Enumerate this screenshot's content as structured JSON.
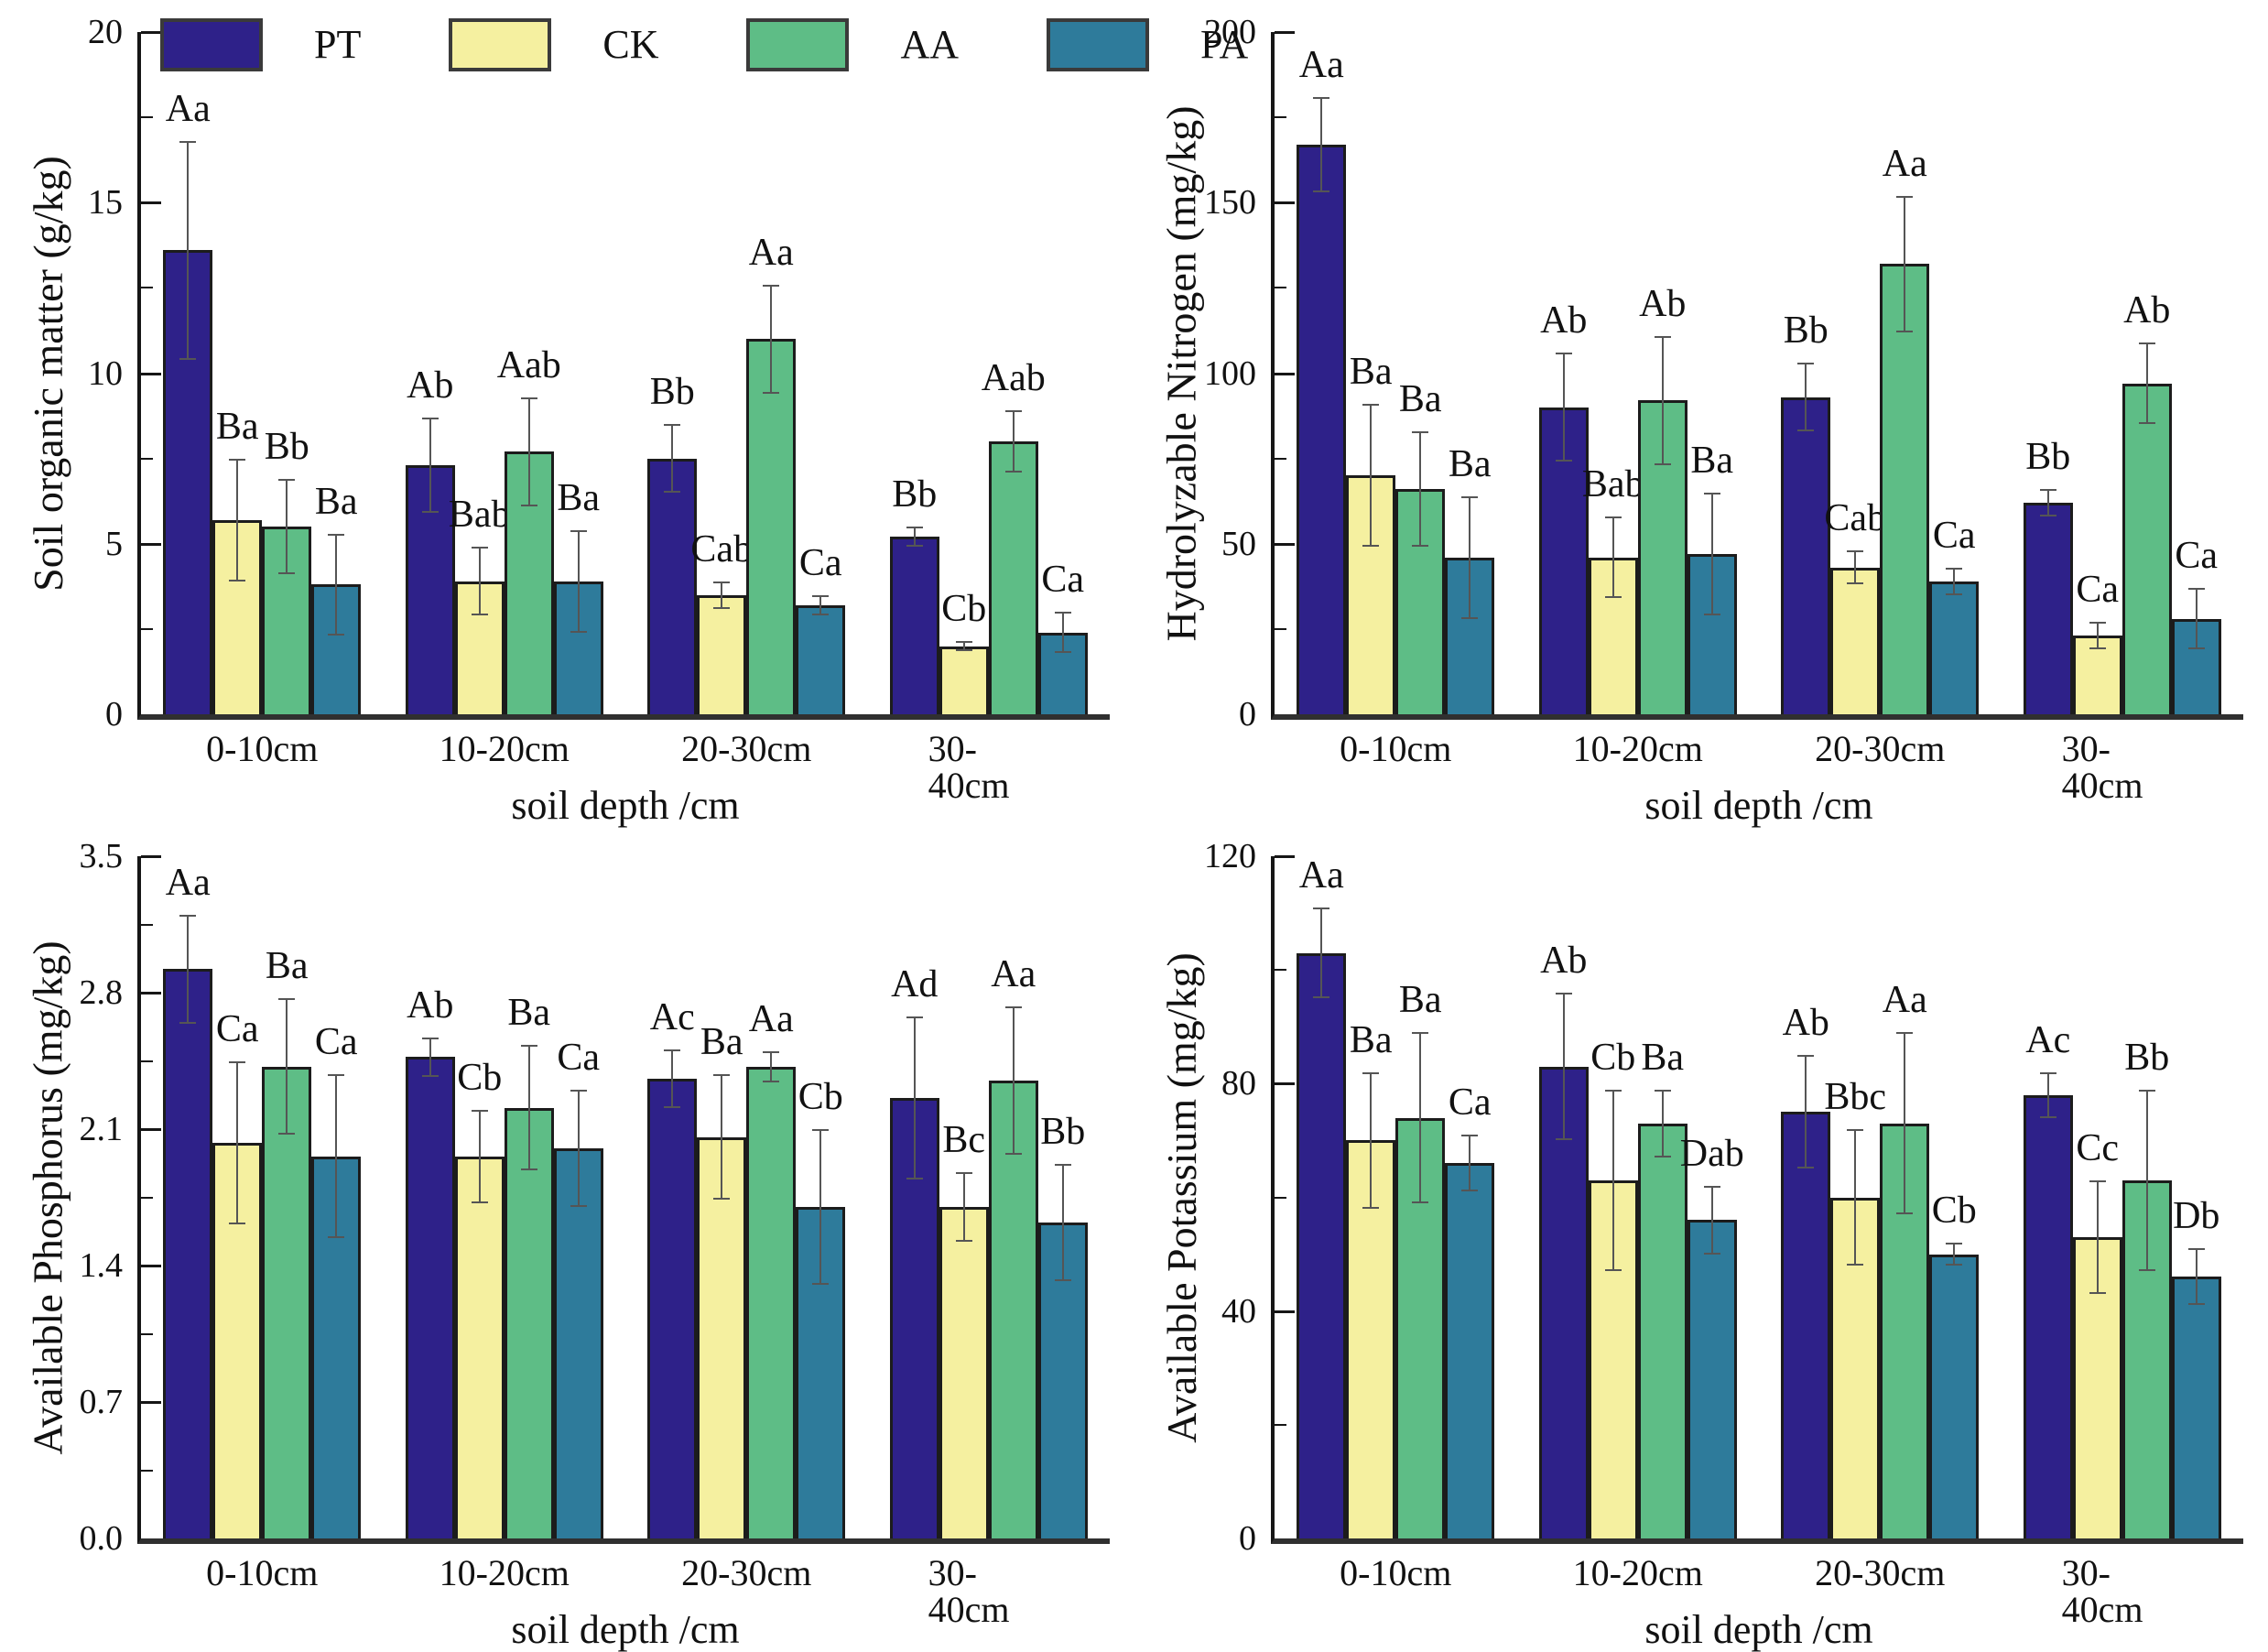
{
  "legend": {
    "items": [
      {
        "label": "PT",
        "color": "#2E2189"
      },
      {
        "label": "CK",
        "color": "#F5F0A0"
      },
      {
        "label": "AA",
        "color": "#5EBD86"
      },
      {
        "label": "PA",
        "color": "#2E7B9B"
      }
    ]
  },
  "colors": {
    "pt": "#2E2189",
    "ck": "#F5F0A0",
    "aa": "#5EBD86",
    "pa": "#2E7B9B",
    "axis": "#161616",
    "error_bar": "#555555"
  },
  "chart_data": [
    {
      "id": "soil-organic-matter",
      "type": "bar",
      "ylabel": "Soil organic matter (g/kg)",
      "xlabel": "soil depth /cm",
      "ylim": [
        0,
        20
      ],
      "ymajor": 5,
      "yminor": 2.5,
      "ytick_labels": [
        "0",
        "5",
        "10",
        "15",
        "20"
      ],
      "categories": [
        "0-10cm",
        "10-20cm",
        "20-30cm",
        "30-40cm"
      ],
      "legend_position": "top-inside",
      "show_legend": true,
      "grid": false,
      "series": [
        {
          "name": "PT",
          "color": "#2E2189",
          "values": [
            13.6,
            7.3,
            7.5,
            5.2
          ],
          "errors": [
            3.2,
            1.4,
            1.0,
            0.3
          ],
          "sig": [
            "Aa",
            "Ab",
            "Bb",
            "Bb"
          ]
        },
        {
          "name": "CK",
          "color": "#F5F0A0",
          "values": [
            5.7,
            3.9,
            3.5,
            2.0
          ],
          "errors": [
            1.8,
            1.0,
            0.4,
            0.15
          ],
          "sig": [
            "Ba",
            "Bab",
            "Cab",
            "Cb"
          ]
        },
        {
          "name": "AA",
          "color": "#5EBD86",
          "values": [
            5.5,
            7.7,
            11.0,
            8.0
          ],
          "errors": [
            1.4,
            1.6,
            1.6,
            0.9
          ],
          "sig": [
            "Bb",
            "Aab",
            "Aa",
            "Aab"
          ]
        },
        {
          "name": "PA",
          "color": "#2E7B9B",
          "values": [
            3.8,
            3.9,
            3.2,
            2.4
          ],
          "errors": [
            1.5,
            1.5,
            0.3,
            0.6
          ],
          "sig": [
            "Ba",
            "Ba",
            "Ca",
            "Ca"
          ]
        }
      ]
    },
    {
      "id": "hydrolyzable-nitrogen",
      "type": "bar",
      "ylabel": "Hydrolyzable Nitrogen (mg/kg)",
      "xlabel": "soil depth /cm",
      "ylim": [
        0,
        200
      ],
      "ymajor": 50,
      "yminor": 25,
      "ytick_labels": [
        "0",
        "50",
        "100",
        "150",
        "200"
      ],
      "categories": [
        "0-10cm",
        "10-20cm",
        "20-30cm",
        "30-40cm"
      ],
      "show_legend": false,
      "grid": false,
      "series": [
        {
          "name": "PT",
          "color": "#2E2189",
          "values": [
            167,
            90,
            93,
            62
          ],
          "errors": [
            14,
            16,
            10,
            4
          ],
          "sig": [
            "Aa",
            "Ab",
            "Bb",
            "Bb"
          ]
        },
        {
          "name": "CK",
          "color": "#F5F0A0",
          "values": [
            70,
            46,
            43,
            23
          ],
          "errors": [
            21,
            12,
            5,
            4
          ],
          "sig": [
            "Ba",
            "Bab",
            "Cab",
            "Ca"
          ]
        },
        {
          "name": "AA",
          "color": "#5EBD86",
          "values": [
            66,
            92,
            132,
            97
          ],
          "errors": [
            17,
            19,
            20,
            12
          ],
          "sig": [
            "Ba",
            "Ab",
            "Aa",
            "Ab"
          ]
        },
        {
          "name": "PA",
          "color": "#2E7B9B",
          "values": [
            46,
            47,
            39,
            28
          ],
          "errors": [
            18,
            18,
            4,
            9
          ],
          "sig": [
            "Ba",
            "Ba",
            "Ca",
            "Ca"
          ]
        }
      ]
    },
    {
      "id": "available-phosphorus",
      "type": "bar",
      "ylabel": "Available Phosphorus (mg/kg)",
      "xlabel": "soil depth /cm",
      "ylim": [
        0,
        3.5
      ],
      "ymajor": 0.7,
      "yminor": 0.35,
      "ytick_labels": [
        "0.0",
        "0.7",
        "1.4",
        "2.1",
        "2.8",
        "3.5"
      ],
      "categories": [
        "0-10cm",
        "10-20cm",
        "20-30cm",
        "30-40cm"
      ],
      "show_legend": false,
      "grid": false,
      "series": [
        {
          "name": "PT",
          "color": "#2E2189",
          "values": [
            2.92,
            2.47,
            2.36,
            2.26
          ],
          "errors": [
            0.28,
            0.1,
            0.15,
            0.42
          ],
          "sig": [
            "Aa",
            "Ab",
            "Ac",
            "Ad"
          ]
        },
        {
          "name": "CK",
          "color": "#F5F0A0",
          "values": [
            2.03,
            1.96,
            2.06,
            1.7
          ],
          "errors": [
            0.42,
            0.24,
            0.32,
            0.18
          ],
          "sig": [
            "Ca",
            "Cb",
            "Ba",
            "Bc"
          ]
        },
        {
          "name": "AA",
          "color": "#5EBD86",
          "values": [
            2.42,
            2.21,
            2.42,
            2.35
          ],
          "errors": [
            0.35,
            0.32,
            0.08,
            0.38
          ],
          "sig": [
            "Ba",
            "Ba",
            "Aa",
            "Aa"
          ]
        },
        {
          "name": "PA",
          "color": "#2E7B9B",
          "values": [
            1.96,
            2.0,
            1.7,
            1.62
          ],
          "errors": [
            0.42,
            0.3,
            0.4,
            0.3
          ],
          "sig": [
            "Ca",
            "Ca",
            "Cb",
            "Bb"
          ]
        }
      ]
    },
    {
      "id": "available-potassium",
      "type": "bar",
      "ylabel": "Available Potassium (mg/kg)",
      "xlabel": "soil depth /cm",
      "ylim": [
        0,
        120
      ],
      "ymajor": 40,
      "yminor": 20,
      "ytick_labels": [
        "0",
        "40",
        "80",
        "120"
      ],
      "categories": [
        "0-10cm",
        "10-20cm",
        "20-30cm",
        "30-40cm"
      ],
      "show_legend": false,
      "grid": false,
      "series": [
        {
          "name": "PT",
          "color": "#2E2189",
          "values": [
            103,
            83,
            75,
            78
          ],
          "errors": [
            8,
            13,
            10,
            4
          ],
          "sig": [
            "Aa",
            "Ab",
            "Ab",
            "Ac"
          ]
        },
        {
          "name": "CK",
          "color": "#F5F0A0",
          "values": [
            70,
            63,
            60,
            53
          ],
          "errors": [
            12,
            16,
            12,
            10
          ],
          "sig": [
            "Ba",
            "Cb",
            "Bbc",
            "Cc"
          ]
        },
        {
          "name": "AA",
          "color": "#5EBD86",
          "values": [
            74,
            73,
            73,
            63
          ],
          "errors": [
            15,
            6,
            16,
            16
          ],
          "sig": [
            "Ba",
            "Ba",
            "Aa",
            "Bb"
          ]
        },
        {
          "name": "PA",
          "color": "#2E7B9B",
          "values": [
            66,
            56,
            50,
            46
          ],
          "errors": [
            5,
            6,
            2,
            5
          ],
          "sig": [
            "Ca",
            "Dab",
            "Cb",
            "Db"
          ]
        }
      ]
    }
  ]
}
